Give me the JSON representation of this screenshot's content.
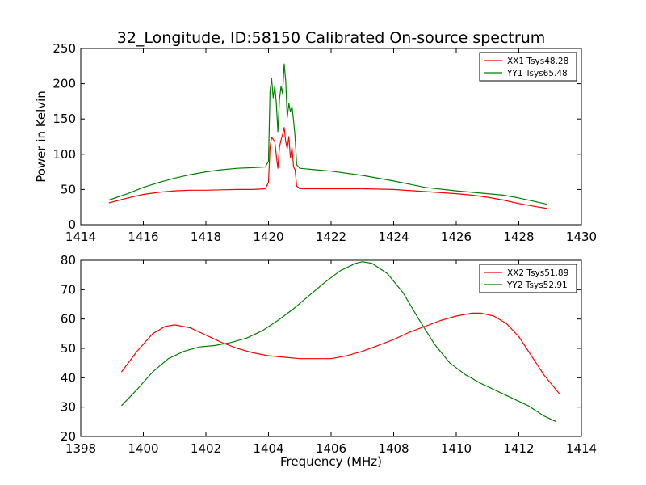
{
  "figure_title": "32_Longitude, ID:58150 Calibrated On-source spectrum",
  "colors": {
    "xx": "#ff0000",
    "yy": "#008000"
  },
  "chart_data": [
    {
      "type": "line",
      "title": "32_Longitude, ID:58150 Calibrated On-source spectrum",
      "xlabel": "",
      "ylabel": "Power in Kelvin",
      "xlim": [
        1414,
        1430
      ],
      "ylim": [
        0,
        250
      ],
      "xticks": [
        "1414",
        "1416",
        "1418",
        "1420",
        "1422",
        "1424",
        "1426",
        "1428",
        "1430"
      ],
      "yticks": [
        "0",
        "50",
        "100",
        "150",
        "200",
        "250"
      ],
      "grid": false,
      "legend": "top-right",
      "series": [
        {
          "name": "XX1 Tsys48.28",
          "color": "#ff0000",
          "x": [
            1414.9,
            1415.5,
            1416.0,
            1416.5,
            1417.0,
            1417.5,
            1418.0,
            1418.5,
            1419.0,
            1419.5,
            1419.9,
            1420.0,
            1420.05,
            1420.1,
            1420.2,
            1420.25,
            1420.3,
            1420.35,
            1420.4,
            1420.45,
            1420.5,
            1420.55,
            1420.6,
            1420.65,
            1420.7,
            1420.75,
            1420.8,
            1420.85,
            1420.9,
            1421.0,
            1421.5,
            1422.0,
            1423.0,
            1424.0,
            1425.0,
            1426.0,
            1426.5,
            1427.0,
            1427.5,
            1428.0,
            1428.5,
            1428.9
          ],
          "y": [
            31,
            38,
            43,
            46,
            48,
            49,
            49,
            49.5,
            50,
            50,
            51,
            60,
            110,
            124,
            118,
            98,
            80,
            110,
            120,
            128,
            138,
            118,
            108,
            125,
            95,
            110,
            82,
            78,
            55,
            51,
            51,
            51,
            51,
            50,
            47,
            44,
            42,
            39,
            35,
            30,
            26,
            23
          ]
        },
        {
          "name": "YY1 Tsys65.48",
          "color": "#008000",
          "x": [
            1414.9,
            1415.5,
            1416.0,
            1416.5,
            1417.0,
            1417.5,
            1418.0,
            1418.5,
            1419.0,
            1419.5,
            1419.9,
            1420.0,
            1420.05,
            1420.1,
            1420.15,
            1420.2,
            1420.25,
            1420.3,
            1420.35,
            1420.4,
            1420.45,
            1420.5,
            1420.55,
            1420.6,
            1420.65,
            1420.7,
            1420.75,
            1420.8,
            1420.85,
            1420.9,
            1421.0,
            1421.5,
            1422.0,
            1423.0,
            1424.0,
            1425.0,
            1426.0,
            1427.0,
            1427.5,
            1428.0,
            1428.5,
            1428.9
          ],
          "y": [
            35,
            44,
            53,
            60,
            66,
            71,
            75,
            78,
            80,
            81,
            82,
            90,
            190,
            207,
            180,
            197,
            172,
            132,
            178,
            196,
            186,
            228,
            205,
            152,
            172,
            160,
            168,
            148,
            125,
            85,
            80,
            78,
            76,
            70,
            62,
            53,
            48,
            44,
            42,
            38,
            33,
            29
          ]
        }
      ]
    },
    {
      "type": "line",
      "title": "",
      "xlabel": "Frequency (MHz)",
      "ylabel": "",
      "xlim": [
        1398,
        1414
      ],
      "ylim": [
        20,
        80
      ],
      "xticks": [
        "1398",
        "1400",
        "1402",
        "1404",
        "1406",
        "1408",
        "1410",
        "1412",
        "1414"
      ],
      "yticks": [
        "20",
        "30",
        "40",
        "50",
        "60",
        "70",
        "80"
      ],
      "grid": false,
      "legend": "top-right",
      "series": [
        {
          "name": "XX2 Tsys51.89",
          "color": "#ff0000",
          "x": [
            1399.3,
            1399.8,
            1400.3,
            1400.7,
            1401.0,
            1401.5,
            1402.0,
            1402.5,
            1403.0,
            1403.5,
            1404.0,
            1404.5,
            1405.0,
            1405.5,
            1406.0,
            1406.5,
            1407.0,
            1407.5,
            1408.0,
            1408.5,
            1409.0,
            1409.5,
            1410.0,
            1410.5,
            1410.8,
            1411.2,
            1411.6,
            1412.0,
            1412.4,
            1412.8,
            1413.3
          ],
          "y": [
            42,
            49,
            55,
            57.5,
            58,
            57,
            54.5,
            52,
            50,
            48.5,
            47.5,
            47,
            46.5,
            46.5,
            46.5,
            47.5,
            49,
            51,
            53,
            55.5,
            57.5,
            59.5,
            61,
            62,
            62,
            61,
            58.5,
            54,
            47.5,
            41,
            34.5
          ]
        },
        {
          "name": "YY2 Tsys52.91",
          "color": "#008000",
          "x": [
            1399.3,
            1399.8,
            1400.3,
            1400.8,
            1401.3,
            1401.8,
            1402.3,
            1402.8,
            1403.3,
            1403.8,
            1404.3,
            1404.8,
            1405.3,
            1405.8,
            1406.3,
            1406.8,
            1407.0,
            1407.3,
            1407.8,
            1408.3,
            1408.8,
            1409.3,
            1409.8,
            1410.3,
            1410.8,
            1411.3,
            1411.8,
            1412.3,
            1412.8,
            1413.2
          ],
          "y": [
            30.5,
            36,
            42,
            46.5,
            49,
            50.5,
            51,
            52,
            53.5,
            56,
            59.5,
            63.5,
            68,
            72.5,
            76.5,
            79,
            79.5,
            79,
            75.5,
            69,
            60,
            51.5,
            45,
            41,
            38,
            35.5,
            33,
            30.5,
            27,
            25
          ]
        }
      ]
    }
  ]
}
